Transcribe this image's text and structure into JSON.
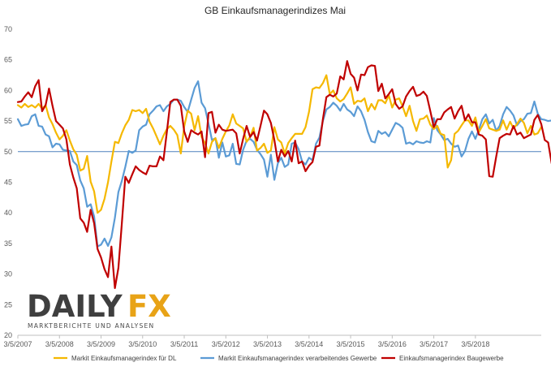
{
  "chart_data": {
    "type": "line",
    "title": "GB Einkaufsmanagerindizes Mai",
    "xlabel": "",
    "ylabel": "",
    "ylim": [
      20,
      70
    ],
    "yticks": [
      20,
      25,
      30,
      35,
      40,
      45,
      50,
      55,
      60,
      65,
      70
    ],
    "xlim": [
      "2007-03",
      "2018-05"
    ],
    "xticks": [
      "3/5/2007",
      "3/5/2008",
      "3/5/2009",
      "3/5/2010",
      "3/5/2011",
      "3/5/2012",
      "3/5/2013",
      "3/5/2014",
      "3/5/2015",
      "3/5/2016",
      "3/5/2017",
      "3/5/2018"
    ],
    "reference_line": 50,
    "grid": false,
    "legend_position": "bottom",
    "series": [
      {
        "name": "Markit Einkaufsmanagerindex für DL",
        "color": "#f5b800",
        "values": [
          57.6,
          57.2,
          57.8,
          57.3,
          57.6,
          57.2,
          57.8,
          57.0,
          57.6,
          55.6,
          54.5,
          53.1,
          52.0,
          52.6,
          53.5,
          51.8,
          50.4,
          49.5,
          46.9,
          47.2,
          49.3,
          45.1,
          43.5,
          40.0,
          40.5,
          42.3,
          45.0,
          48.4,
          51.6,
          51.4,
          53.0,
          54.3,
          55.2,
          56.8,
          56.6,
          56.8,
          56.3,
          57.0,
          54.9,
          53.8,
          52.5,
          51.2,
          52.6,
          53.7,
          54.2,
          53.6,
          52.7,
          49.7,
          54.1,
          56.7,
          56.2,
          53.5,
          55.8,
          52.4,
          51.4,
          49.7,
          51.6,
          52.2,
          50.6,
          52.1,
          53.3,
          54.3,
          56.1,
          54.6,
          54.2,
          53.8,
          51.6,
          52.4,
          53.9,
          50.2,
          50.6,
          51.3,
          49.8,
          50.2,
          54.0,
          52.0,
          51.5,
          49.7,
          51.4,
          52.2,
          52.9,
          52.9,
          52.9,
          54.0,
          56.5,
          60.2,
          60.5,
          60.4,
          61.2,
          62.5,
          59.4,
          60.0,
          58.7,
          58.2,
          58.6,
          59.5,
          60.5,
          57.8,
          58.3,
          58.2,
          58.7,
          56.6,
          57.8,
          56.9,
          58.4,
          58.4,
          57.9,
          59.2,
          57.2,
          58.5,
          58.7,
          57.4,
          55.8,
          57.5,
          55.0,
          53.4,
          55.3,
          55.4,
          55.9,
          54.4,
          53.7,
          54.2,
          52.9,
          52.7,
          47.4,
          48.6,
          52.9,
          53.4,
          54.3,
          55.1,
          55.1,
          54.2,
          55.6,
          53.2,
          54.2,
          55.3,
          53.8,
          53.6,
          53.4,
          53.6,
          55.1,
          53.6,
          54.9,
          53.8,
          54.5,
          55.4,
          54.7,
          53.0,
          54.2,
          52.8,
          53.0,
          54.0
        ]
      },
      {
        "name": "Markit Einkaufsmanagerindex verarbeitendes Gewerbe",
        "color": "#5b9bd5",
        "values": [
          55.3,
          54.2,
          54.4,
          54.5,
          55.8,
          56.1,
          54.2,
          54.1,
          52.8,
          52.5,
          50.7,
          51.3,
          51.2,
          50.3,
          50.2,
          50.1,
          48.4,
          47.8,
          45.3,
          44.0,
          41.0,
          41.4,
          39.4,
          34.5,
          34.8,
          35.8,
          34.6,
          36.0,
          39.2,
          43.4,
          45.2,
          47.5,
          50.1,
          49.8,
          50.2,
          53.5,
          54.1,
          54.4,
          56.1,
          56.7,
          57.4,
          57.6,
          56.6,
          57.4,
          57.8,
          58.5,
          58.5,
          58.3,
          57.3,
          56.5,
          58.5,
          60.4,
          61.5,
          58.0,
          57.1,
          54.6,
          51.9,
          52.2,
          49.0,
          51.5,
          49.2,
          49.4,
          51.3,
          48.0,
          47.9,
          50.3,
          51.8,
          52.1,
          51.6,
          50.3,
          49.6,
          48.7,
          45.9,
          49.5,
          45.4,
          48.1,
          49.0,
          47.5,
          47.9,
          51.3,
          51.5,
          50.4,
          48.4,
          47.9,
          49.0,
          48.6,
          51.3,
          52.3,
          55.0,
          56.9,
          57.3,
          58.0,
          57.5,
          56.7,
          57.8,
          56.9,
          56.5,
          55.8,
          57.4,
          56.6,
          55.2,
          53.2,
          51.7,
          51.5,
          53.4,
          52.9,
          53.2,
          52.5,
          53.6,
          54.7,
          54.4,
          53.9,
          51.3,
          51.5,
          51.2,
          51.7,
          51.5,
          51.4,
          51.7,
          51.5,
          55.5,
          53.5,
          52.8,
          51.9,
          52.1,
          51.3,
          50.8,
          51.0,
          49.2,
          50.1,
          52.1,
          53.3,
          52.1,
          53.6,
          55.3,
          56.1,
          54.6,
          55.2,
          53.4,
          54.2,
          56.1,
          57.3,
          56.7,
          55.9,
          54.3,
          55.0,
          55.3,
          56.2,
          56.3,
          58.2,
          56.2,
          55.3,
          55.2,
          55.0,
          55.1,
          54.6,
          54.3,
          54.4
        ]
      },
      {
        "name": "Einkaufsmanagerindex Baugewerbe",
        "color": "#c00000",
        "values": [
          58.1,
          58.2,
          59.0,
          59.7,
          58.9,
          60.7,
          61.7,
          56.6,
          57.6,
          60.3,
          57.5,
          55.0,
          54.4,
          53.8,
          52.0,
          47.9,
          45.8,
          44.0,
          39.1,
          38.4,
          36.9,
          40.5,
          38.3,
          34.1,
          32.7,
          30.8,
          29.5,
          34.5,
          27.7,
          31.0,
          38.2,
          45.9,
          44.9,
          46.3,
          47.6,
          47.0,
          46.6,
          46.3,
          47.7,
          47.6,
          47.6,
          49.2,
          48.6,
          53.3,
          58.1,
          58.5,
          58.5,
          57.5,
          53.3,
          51.6,
          53.5,
          53.1,
          52.8,
          53.3,
          49.1,
          56.3,
          56.5,
          53.1,
          54.4,
          53.6,
          53.4,
          53.5,
          53.6,
          53.0,
          49.7,
          52.1,
          54.2,
          52.4,
          53.2,
          51.8,
          54.2,
          56.7,
          56.1,
          54.7,
          51.9,
          48.4,
          50.3,
          49.2,
          50.1,
          48.4,
          51.8,
          48.1,
          48.4,
          46.8,
          47.7,
          48.3,
          50.8,
          51.0,
          55.3,
          58.9,
          59.3,
          59.0,
          59.5,
          62.3,
          61.8,
          64.8,
          62.7,
          62.1,
          60.0,
          62.6,
          62.5,
          63.8,
          64.1,
          64.0,
          59.9,
          61.1,
          58.7,
          59.4,
          60.2,
          57.8,
          57.0,
          57.4,
          59.0,
          59.9,
          60.6,
          59.1,
          59.3,
          59.8,
          59.1,
          56.6,
          54.0,
          55.3,
          55.3,
          56.4,
          56.9,
          57.3,
          55.4,
          56.6,
          57.5,
          55.1,
          56.1,
          54.8,
          54.8,
          52.8,
          52.6,
          52.0,
          46.0,
          45.9,
          49.2,
          52.2,
          52.6,
          52.9,
          52.8,
          54.2,
          52.8,
          53.1,
          52.2,
          52.5,
          52.8,
          55.2,
          56.0,
          54.5,
          51.9,
          51.5,
          48.1,
          50.8,
          52.2,
          53.1,
          52.2,
          51.8,
          49.5,
          51.5,
          47.0,
          51.4,
          52.5
        ]
      }
    ]
  },
  "logo": {
    "brand": "DAILYFX",
    "brand_left": "DAILY",
    "brand_right": "FX",
    "tagline": "MARKTBERICHTE UND ANALYSEN"
  }
}
